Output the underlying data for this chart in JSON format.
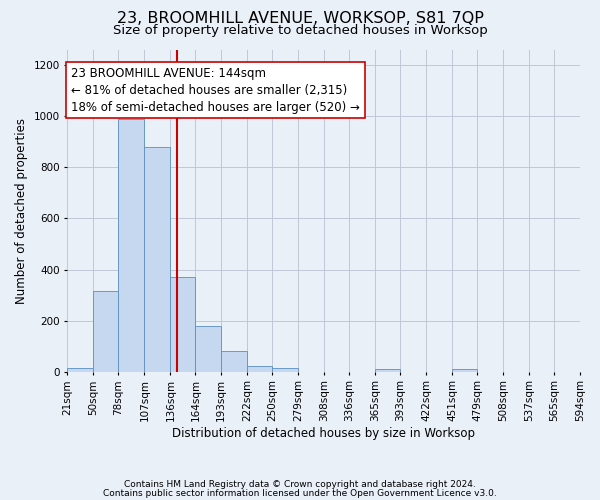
{
  "title": "23, BROOMHILL AVENUE, WORKSOP, S81 7QP",
  "subtitle": "Size of property relative to detached houses in Worksop",
  "xlabel": "Distribution of detached houses by size in Worksop",
  "ylabel": "Number of detached properties",
  "footnote1": "Contains HM Land Registry data © Crown copyright and database right 2024.",
  "footnote2": "Contains public sector information licensed under the Open Government Licence v3.0.",
  "bins": [
    21,
    50,
    78,
    107,
    136,
    164,
    193,
    222,
    250,
    279,
    308,
    336,
    365,
    393,
    422,
    451,
    479,
    508,
    537,
    565,
    594
  ],
  "counts": [
    14,
    315,
    990,
    880,
    370,
    178,
    81,
    22,
    14,
    0,
    0,
    0,
    11,
    0,
    0,
    12,
    0,
    0,
    0,
    0
  ],
  "bar_color": "#c5d8f0",
  "bar_edge_color": "#5a8fc0",
  "vline_x": 144,
  "vline_color": "#cc0000",
  "annotation_text": "23 BROOMHILL AVENUE: 144sqm\n← 81% of detached houses are smaller (2,315)\n18% of semi-detached houses are larger (520) →",
  "annotation_box_color": "white",
  "annotation_box_edge_color": "#cc0000",
  "ylim": [
    0,
    1260
  ],
  "yticks": [
    0,
    200,
    400,
    600,
    800,
    1000,
    1200
  ],
  "tick_labels": [
    "21sqm",
    "50sqm",
    "78sqm",
    "107sqm",
    "136sqm",
    "164sqm",
    "193sqm",
    "222sqm",
    "250sqm",
    "279sqm",
    "308sqm",
    "336sqm",
    "365sqm",
    "393sqm",
    "422sqm",
    "451sqm",
    "479sqm",
    "508sqm",
    "537sqm",
    "565sqm",
    "594sqm"
  ],
  "grid_color": "#c0c8d8",
  "bg_color": "#eaf0f8",
  "title_fontsize": 11.5,
  "subtitle_fontsize": 9.5,
  "annotation_fontsize": 8.5,
  "xlabel_fontsize": 8.5,
  "ylabel_fontsize": 8.5,
  "tick_fontsize": 7.5,
  "footnote_fontsize": 6.5
}
